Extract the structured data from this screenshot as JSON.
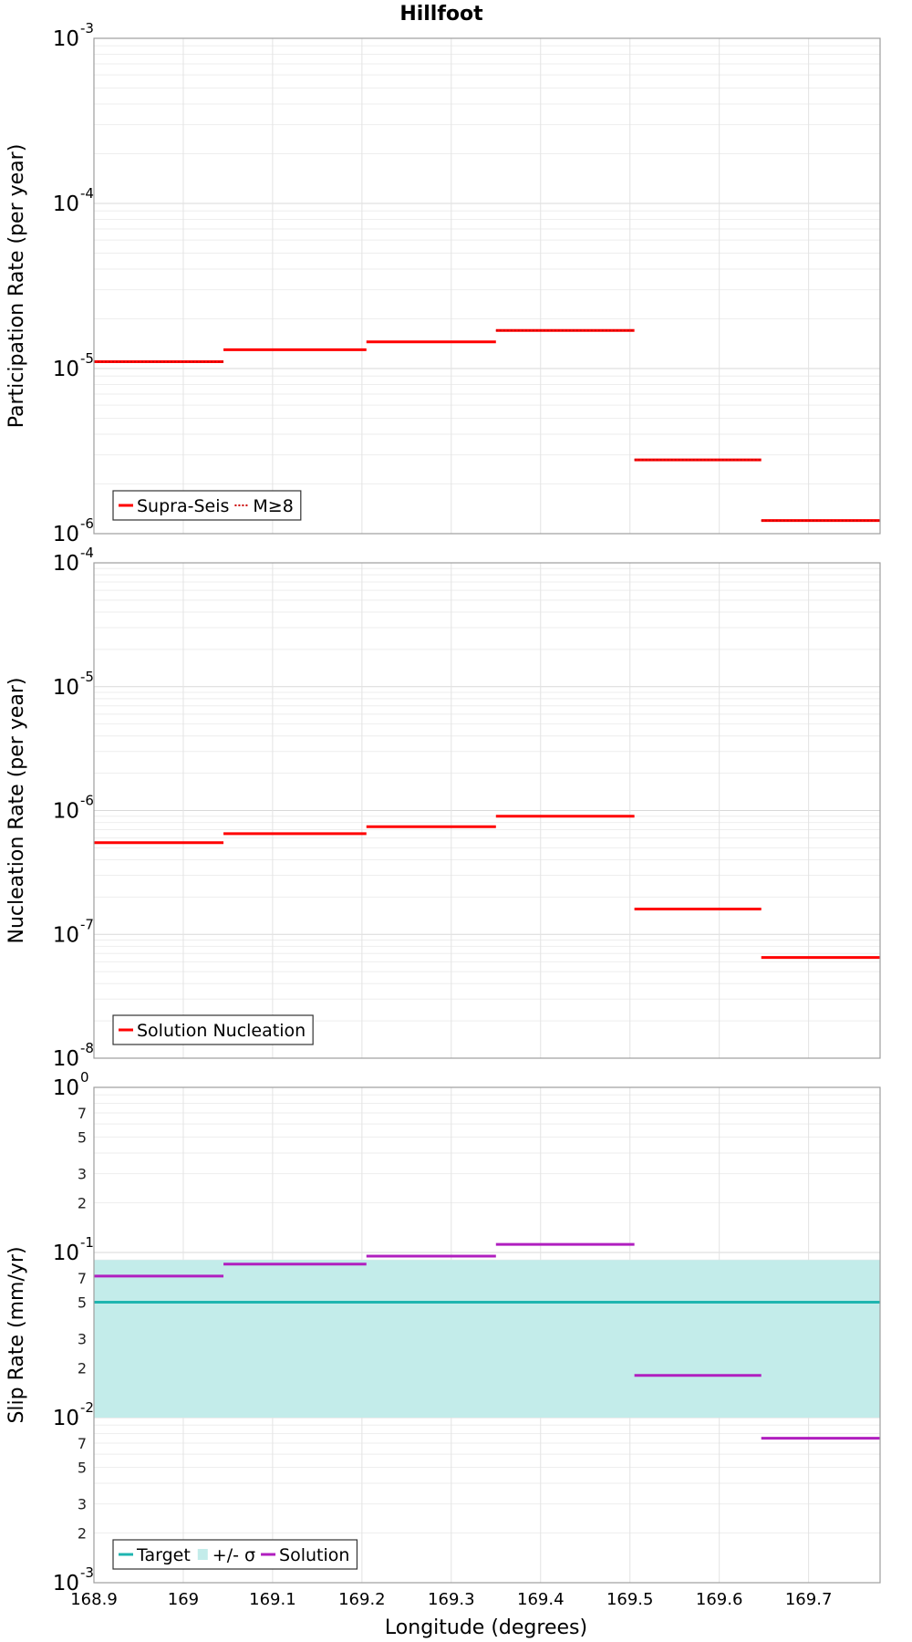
{
  "chart_data": [
    {
      "type": "line",
      "title": "Hillfoot",
      "ylabel": "Participation Rate (per year)",
      "yscale": "log",
      "ylim": [
        1e-06,
        0.001
      ],
      "xlim": [
        168.9,
        169.78
      ],
      "grid": true,
      "legend_position": "bottom-left",
      "x_ticks": [
        "168.9",
        "169",
        "169.1",
        "169.2",
        "169.3",
        "169.4",
        "169.5",
        "169.6",
        "169.7"
      ],
      "series": [
        {
          "name": "Supra-Seis",
          "style": "solid",
          "color": "#ff0000",
          "segments": [
            {
              "x0": 168.9,
              "x1": 169.045,
              "y": 1.1e-05
            },
            {
              "x0": 169.045,
              "x1": 169.205,
              "y": 1.3e-05
            },
            {
              "x0": 169.205,
              "x1": 169.35,
              "y": 1.45e-05
            },
            {
              "x0": 169.35,
              "x1": 169.505,
              "y": 1.7e-05
            },
            {
              "x0": 169.505,
              "x1": 169.647,
              "y": 2.8e-06
            },
            {
              "x0": 169.647,
              "x1": 169.78,
              "y": 1.2e-06
            }
          ]
        },
        {
          "name": "M≥8",
          "style": "dotted",
          "color": "#cc0000",
          "segments": [
            {
              "x0": 168.9,
              "x1": 169.045,
              "y": 1.1e-05
            },
            {
              "x0": 169.35,
              "x1": 169.505,
              "y": 1.7e-05
            },
            {
              "x0": 169.505,
              "x1": 169.647,
              "y": 2.8e-06
            },
            {
              "x0": 169.647,
              "x1": 169.78,
              "y": 1.2e-06
            }
          ]
        }
      ]
    },
    {
      "type": "line",
      "ylabel": "Nucleation Rate (per year)",
      "yscale": "log",
      "ylim": [
        1e-08,
        0.0001
      ],
      "xlim": [
        168.9,
        169.78
      ],
      "grid": true,
      "legend_position": "bottom-left",
      "series": [
        {
          "name": "Solution Nucleation",
          "style": "solid",
          "color": "#ff0000",
          "segments": [
            {
              "x0": 168.9,
              "x1": 169.045,
              "y": 5.5e-07
            },
            {
              "x0": 169.045,
              "x1": 169.205,
              "y": 6.5e-07
            },
            {
              "x0": 169.205,
              "x1": 169.35,
              "y": 7.4e-07
            },
            {
              "x0": 169.35,
              "x1": 169.505,
              "y": 9e-07
            },
            {
              "x0": 169.505,
              "x1": 169.647,
              "y": 1.6e-07
            },
            {
              "x0": 169.647,
              "x1": 169.78,
              "y": 6.5e-08
            }
          ]
        }
      ]
    },
    {
      "type": "line",
      "ylabel": "Slip Rate (mm/yr)",
      "xlabel": "Longitude (degrees)",
      "yscale": "log",
      "ylim": [
        0.001,
        1
      ],
      "xlim": [
        168.9,
        169.78
      ],
      "grid": true,
      "legend_position": "bottom-left",
      "band": {
        "name": "+/- σ",
        "color": "#c3ecea",
        "y0": 0.01,
        "y1": 0.09
      },
      "series": [
        {
          "name": "Target",
          "style": "solid",
          "color": "#1fb5b0",
          "segments": [
            {
              "x0": 168.9,
              "x1": 169.78,
              "y": 0.05
            }
          ]
        },
        {
          "name": "Solution",
          "style": "solid",
          "color": "#b01fbf",
          "segments": [
            {
              "x0": 168.9,
              "x1": 169.045,
              "y": 0.072
            },
            {
              "x0": 169.045,
              "x1": 169.205,
              "y": 0.085
            },
            {
              "x0": 169.205,
              "x1": 169.35,
              "y": 0.095
            },
            {
              "x0": 169.35,
              "x1": 169.505,
              "y": 0.112
            },
            {
              "x0": 169.505,
              "x1": 169.647,
              "y": 0.018
            },
            {
              "x0": 169.647,
              "x1": 169.78,
              "y": 0.0075
            }
          ]
        }
      ],
      "minor_tick_labels": [
        "2",
        "3",
        "5",
        "7"
      ]
    }
  ]
}
